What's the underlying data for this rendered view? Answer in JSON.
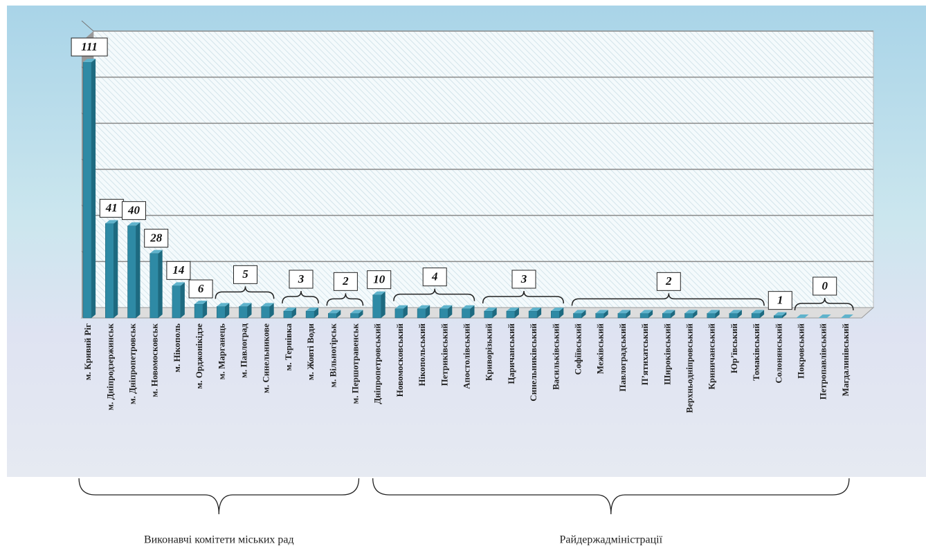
{
  "chart_data": {
    "type": "bar3d",
    "categories": [
      "м. Кривий Ріг",
      "м. Дніпродзержинськ",
      "м. Дніпропетровськ",
      "м. Новомосковськ",
      "м. Нікополь",
      "м. Орджонікідзе",
      "м. Марганець",
      "м. Павлоград",
      "м. Синельникове",
      "м. Тернівка",
      "м. Жовті Води",
      "м. Вільногірськ",
      "м. Першотравенськ",
      "Дніпропетровський",
      "Новомосковський",
      "Нікопольський",
      "Петриківський",
      "Апостолівський",
      "Криворізький",
      "Царичанський",
      "Синельниківський",
      "Васильківський",
      "Софіївський",
      "Межівський",
      "Павлоградський",
      "П’ятихатський",
      "Широківський",
      "Верхньодніпровський",
      "Криничанський",
      "Юр’ївський",
      "Томаківський",
      "Солонянський",
      "Покровський",
      "Петропавлівський",
      "Магдалинівський"
    ],
    "values": [
      111,
      41,
      40,
      28,
      14,
      6,
      5,
      5,
      5,
      3,
      3,
      2,
      2,
      10,
      4,
      4,
      4,
      4,
      3,
      3,
      3,
      3,
      2,
      2,
      2,
      2,
      2,
      2,
      2,
      2,
      2,
      1,
      0,
      0,
      0
    ],
    "color": "#2e8aa5",
    "ylim": [
      0,
      120
    ],
    "yticks": [
      0,
      20,
      40,
      60,
      80,
      100,
      120
    ],
    "grid": true,
    "groups": [
      {
        "name": "Виконавчі комітети міських рад",
        "first": "м. Кривий Ріг",
        "last": "м. Першотравенськ"
      },
      {
        "name": "Райдержадміністрації",
        "first": "Дніпропетровський",
        "last": "Магдалинівський"
      }
    ]
  }
}
